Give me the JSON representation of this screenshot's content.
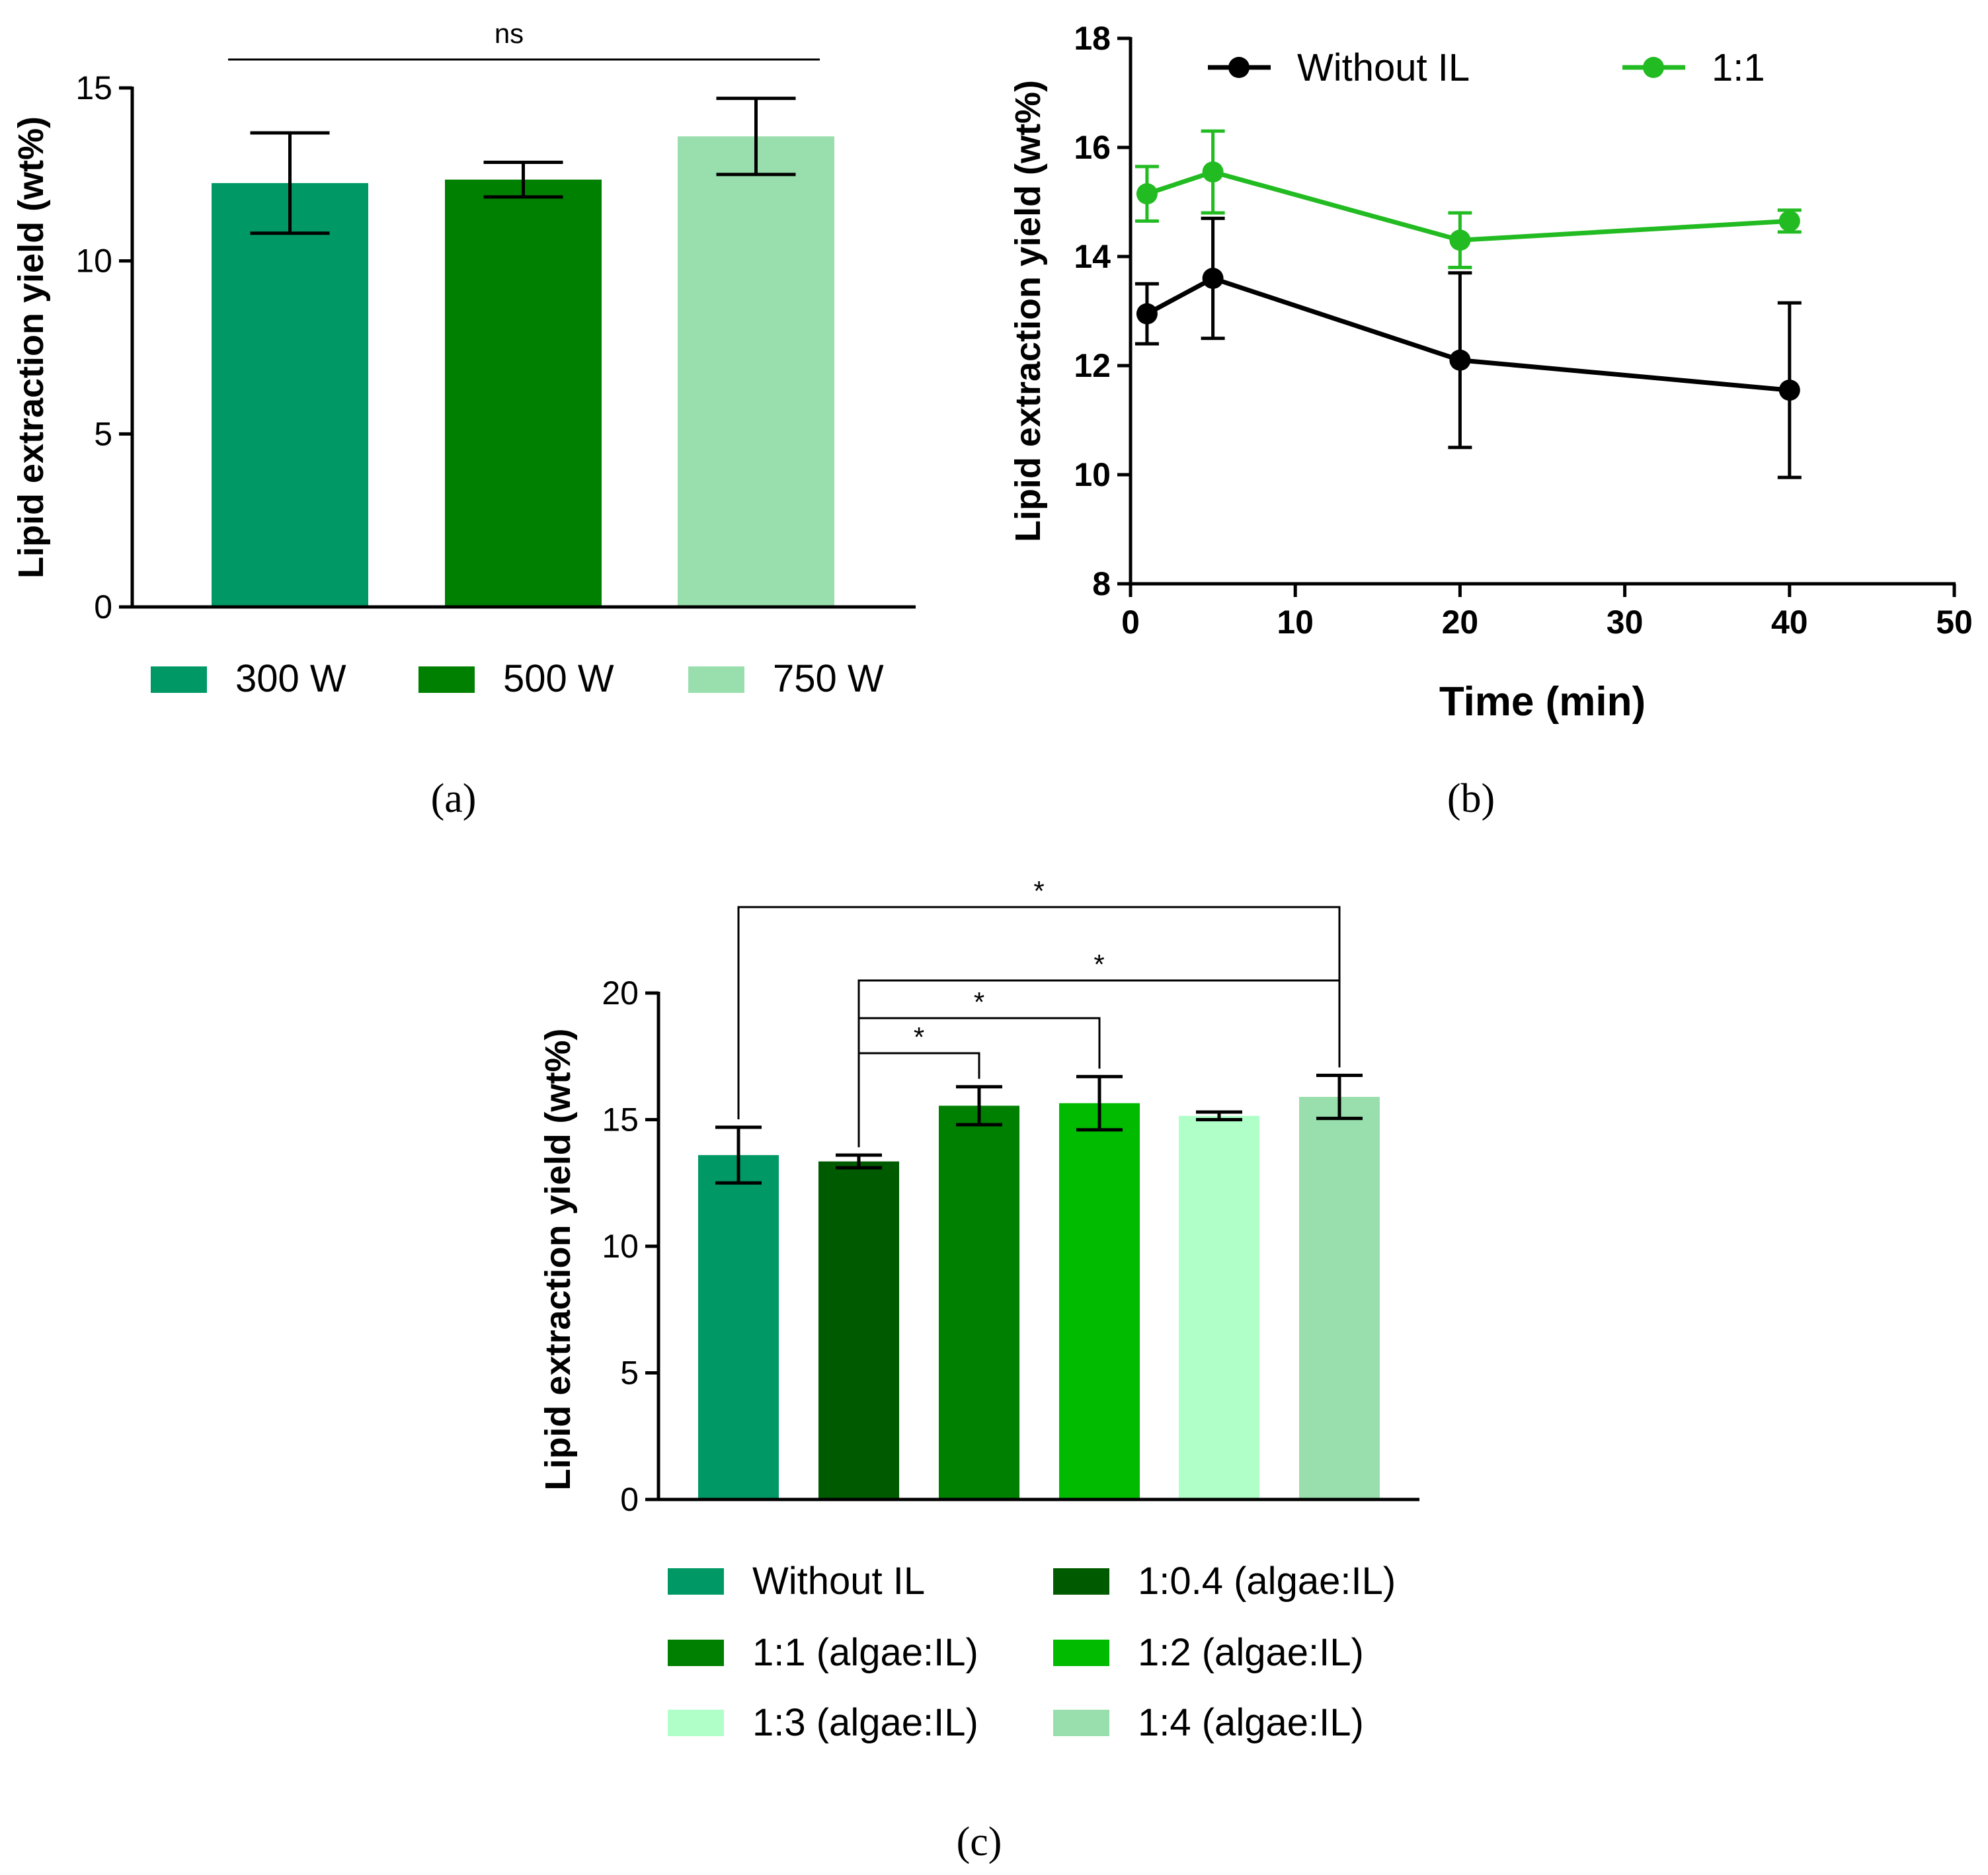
{
  "chart_data": [
    {
      "panel": "a",
      "type": "bar",
      "caption": "(a)",
      "ylabel": "Lipid extraction yield (wt%)",
      "xlabel": "",
      "ylim": [
        0,
        15
      ],
      "yticks": [
        "0",
        "5",
        "10",
        "15"
      ],
      "categories": [
        "300 W",
        "500 W",
        "750 W"
      ],
      "values": [
        12.25,
        12.35,
        13.6
      ],
      "errors": [
        1.45,
        0.5,
        1.1
      ],
      "colors": [
        "#009966",
        "#008000",
        "#99dfad"
      ],
      "legend": [
        "300 W",
        "500 W",
        "750 W"
      ],
      "legend_position": "bottom",
      "annotations": [
        {
          "from": 0,
          "to": 2,
          "label": "ns"
        }
      ]
    },
    {
      "panel": "b",
      "type": "line",
      "caption": "(b)",
      "xlabel": "Time (min)",
      "ylabel": "Lipid extraction yield (wt%)",
      "xlim": [
        0,
        50
      ],
      "ylim": [
        8,
        18
      ],
      "xticks": [
        "0",
        "10",
        "20",
        "30",
        "40",
        "50"
      ],
      "yticks": [
        "8",
        "10",
        "12",
        "14",
        "16",
        "18"
      ],
      "legend_position": "top",
      "series": [
        {
          "name": "Without IL",
          "color": "#000000",
          "x": [
            1,
            5,
            20,
            40
          ],
          "y": [
            12.95,
            13.6,
            12.1,
            11.55
          ],
          "err": [
            0.55,
            1.1,
            1.6,
            1.6
          ]
        },
        {
          "name": "1:1",
          "color": "#22bb22",
          "x": [
            1,
            5,
            20,
            40
          ],
          "y": [
            15.15,
            15.55,
            14.3,
            14.65
          ],
          "err": [
            0.5,
            0.75,
            0.5,
            0.2
          ]
        }
      ]
    },
    {
      "panel": "c",
      "type": "bar",
      "caption": "(c)",
      "ylabel": "Lipid extraction yield (wt%)",
      "xlabel": "",
      "ylim": [
        0,
        20
      ],
      "yticks": [
        "0",
        "5",
        "10",
        "15",
        "20"
      ],
      "categories": [
        "Without IL",
        "1:0.4 (algae:IL)",
        "1:1 (algae:IL)",
        "1:2 (algae:IL)",
        "1:3 (algae:IL)",
        "1:4 (algae:IL)"
      ],
      "values": [
        13.6,
        13.35,
        15.55,
        15.65,
        15.15,
        15.9
      ],
      "errors": [
        1.1,
        0.25,
        0.75,
        1.05,
        0.15,
        0.85
      ],
      "colors": [
        "#009966",
        "#005a00",
        "#008000",
        "#00bb00",
        "#b0ffc8",
        "#99dfad"
      ],
      "legend": [
        "Without IL",
        "1:0.4 (algae:IL)",
        "1:1 (algae:IL)",
        "1:2 (algae:IL)",
        "1:3 (algae:IL)",
        "1:4 (algae:IL)"
      ],
      "legend_position": "bottom",
      "significance": [
        {
          "from": 1,
          "to": 2,
          "label": "*"
        },
        {
          "from": 1,
          "to": 3,
          "label": "*"
        },
        {
          "from": 1,
          "to": 5,
          "label": "*"
        },
        {
          "from": 0,
          "to": 5,
          "label": "*"
        }
      ]
    }
  ]
}
